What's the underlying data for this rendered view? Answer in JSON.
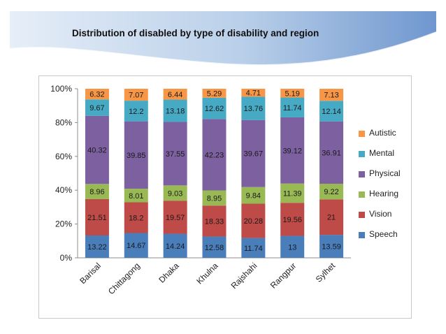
{
  "slide": {
    "title": "Distribution of disabled by type of disability and region"
  },
  "chart_data": {
    "type": "bar",
    "stacked": true,
    "percent_stacked": true,
    "title": "",
    "xlabel": "",
    "ylabel": "",
    "ylim": [
      0,
      100
    ],
    "y_ticks": [
      "0%",
      "20%",
      "40%",
      "60%",
      "80%",
      "100%"
    ],
    "grid": false,
    "legend_position": "right",
    "categories": [
      "Barisal",
      "Chittagong",
      "Dhaka",
      "Khulna",
      "Rajshahi",
      "Rangpur",
      "Sylhet"
    ],
    "series": [
      {
        "name": "Speech",
        "color": "#4a7ebb",
        "values": [
          13.22,
          14.67,
          14.24,
          12.58,
          11.74,
          13,
          13.59
        ],
        "labels": [
          "13.22",
          "14.67",
          "14.24",
          "12.58",
          "11.74",
          "13",
          "13.59"
        ]
      },
      {
        "name": "Vision",
        "color": "#be4b48",
        "values": [
          21.51,
          18.2,
          19.57,
          18.33,
          20.28,
          19.56,
          21
        ],
        "labels": [
          "21.51",
          "18.2",
          "19.57",
          "18.33",
          "20.28",
          "19.56",
          "21"
        ]
      },
      {
        "name": "Hearing",
        "color": "#98b954",
        "values": [
          8.96,
          8.01,
          9.03,
          8.95,
          9.84,
          11.39,
          9.22
        ],
        "labels": [
          "8.96",
          "8.01",
          "9.03",
          "8.95",
          "9.84",
          "11.39",
          "9.22"
        ]
      },
      {
        "name": "Physical",
        "color": "#7d60a0",
        "values": [
          40.32,
          39.85,
          37.55,
          42.23,
          39.67,
          39.12,
          36.91
        ],
        "labels": [
          "40.32",
          "39.85",
          "37.55",
          "42.23",
          "39.67",
          "39.12",
          "36.91"
        ]
      },
      {
        "name": "Mental",
        "color": "#46aac4",
        "values": [
          9.67,
          12.2,
          13.18,
          12.62,
          13.76,
          11.74,
          12.14
        ],
        "labels": [
          "9.67",
          "12.2",
          "13.18",
          "12.62",
          "13.76",
          "11.74",
          "12.14"
        ]
      },
      {
        "name": "Autistic",
        "color": "#f69646",
        "values": [
          6.32,
          7.07,
          6.44,
          5.29,
          4.71,
          5.19,
          7.13
        ],
        "labels": [
          "6.32",
          "7.07",
          "6.44",
          "5.29",
          "4.71",
          "5.19",
          "7.13"
        ]
      }
    ]
  }
}
